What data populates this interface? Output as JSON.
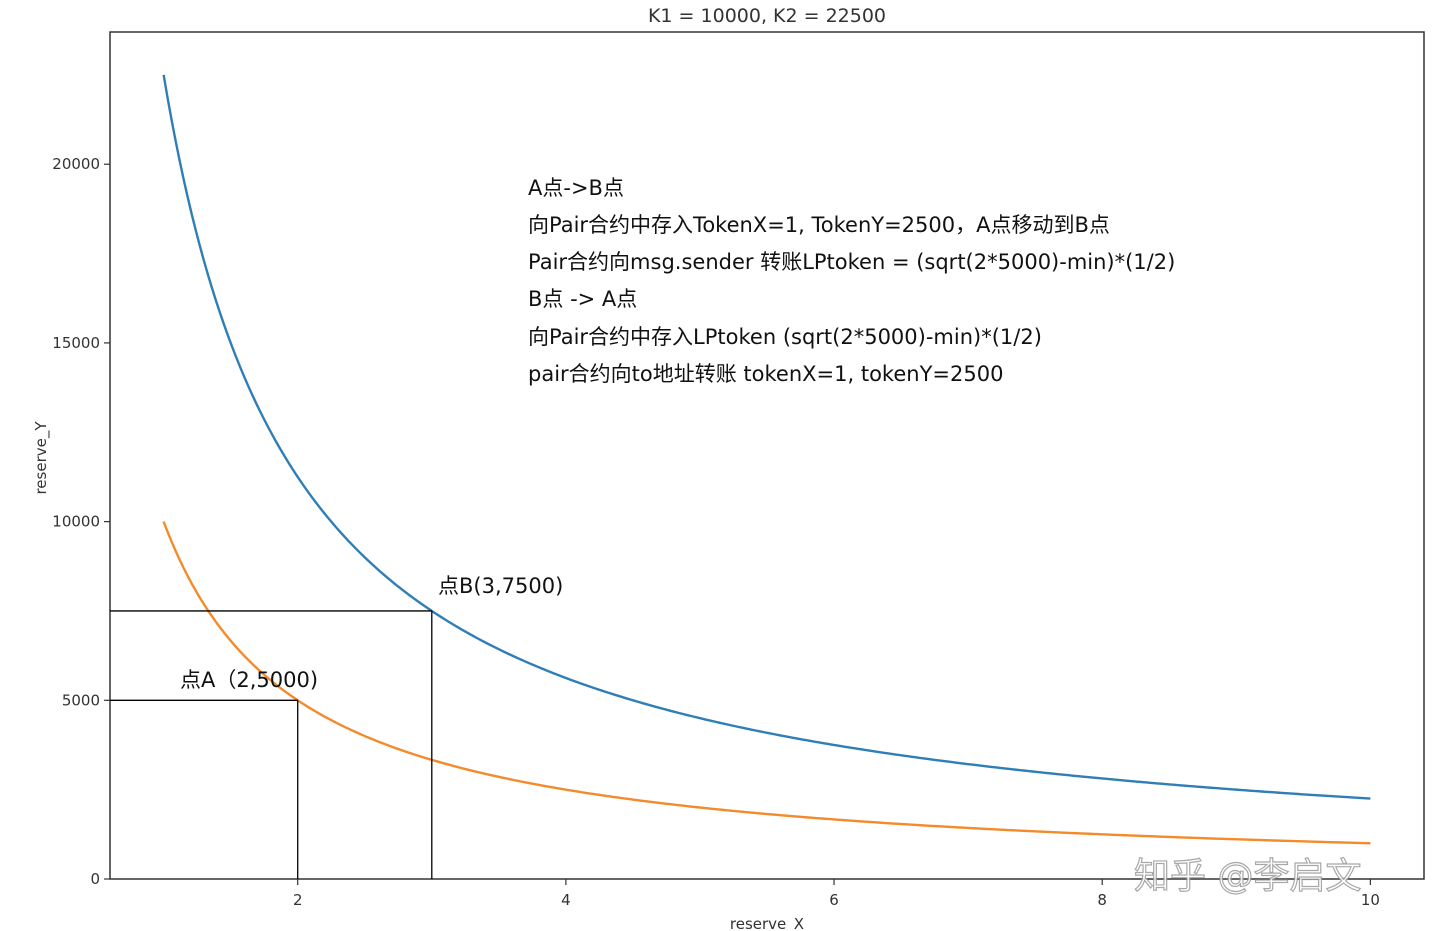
{
  "chart_data": {
    "type": "line",
    "title": "K1 = 10000, K2 = 22500",
    "xlabel": "reserve_X",
    "ylabel": "reserve_Y",
    "xlim": [
      0.6,
      10.4
    ],
    "ylim": [
      0,
      23700
    ],
    "x_ticks": [
      2,
      4,
      6,
      8,
      10
    ],
    "x_tick_labels": [
      "2",
      "4",
      "6",
      "8",
      "10"
    ],
    "y_ticks": [
      0,
      5000,
      10000,
      15000,
      20000
    ],
    "y_tick_labels": [
      "0",
      "5000",
      "10000",
      "15000",
      "20000"
    ],
    "grid": false,
    "series": [
      {
        "k": 22500,
        "x_range": [
          1,
          10
        ],
        "color": "#2f7eb6"
      },
      {
        "k": 10000,
        "x_range": [
          1,
          10
        ],
        "color": "#f38b2c"
      }
    ],
    "points": [
      {
        "x": 2,
        "y": 5000,
        "label": "点A（2,5000)"
      },
      {
        "x": 3,
        "y": 7500,
        "label": "点B(3,7500)"
      }
    ],
    "annotations": [
      "A点->B点",
      "向Pair合约中存入TokenX=1, TokenY=2500，A点移动到B点",
      "Pair合约向msg.sender 转账LPtoken = (sqrt(2*5000)-min)*(1/2)",
      "B点 -> A点",
      "向Pair合约中存入LPtoken  (sqrt(2*5000)-min)*(1/2)",
      "pair合约向to地址转账 tokenX=1, tokenY=2500"
    ]
  },
  "watermark": "知乎 @李启文"
}
